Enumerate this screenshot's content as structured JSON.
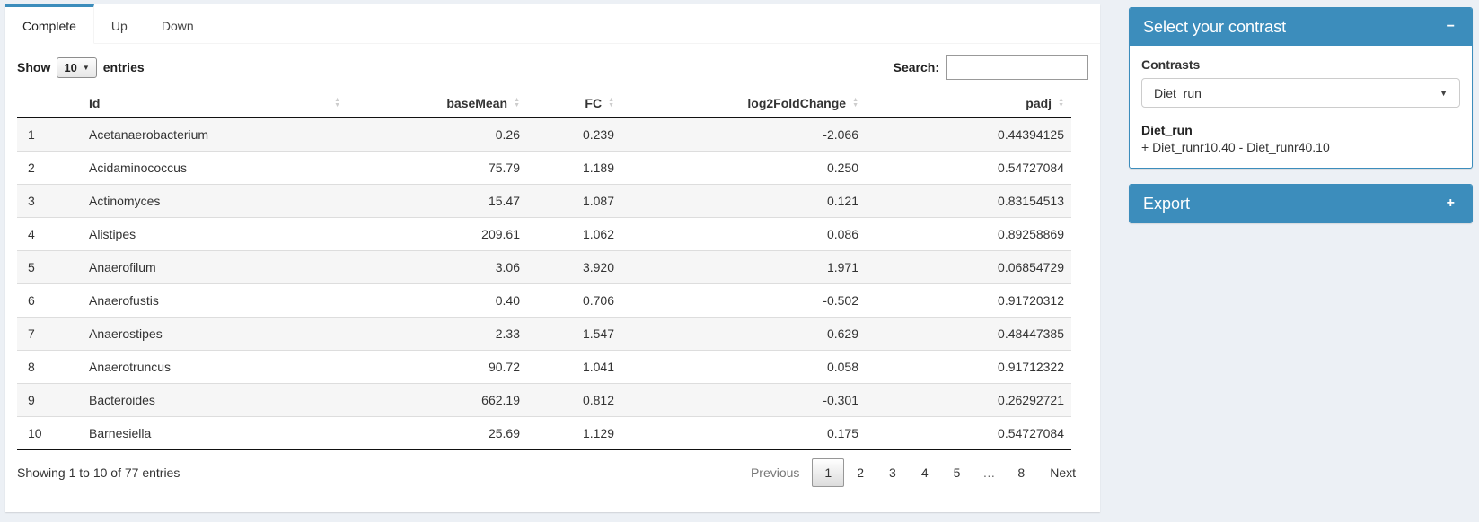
{
  "colors": {
    "accent": "#3c8dbc",
    "page_bg": "#ecf0f5",
    "stripe": "#f6f6f6"
  },
  "tabs": [
    {
      "label": "Complete",
      "active": true
    },
    {
      "label": "Up",
      "active": false
    },
    {
      "label": "Down",
      "active": false
    }
  ],
  "length_control": {
    "label_before": "Show",
    "selected": "10",
    "label_after": "entries"
  },
  "search": {
    "label": "Search:",
    "value": "",
    "placeholder": ""
  },
  "table": {
    "columns": [
      {
        "key": "index",
        "label": "",
        "sortable": false
      },
      {
        "key": "id",
        "label": "Id",
        "sortable": true
      },
      {
        "key": "baseMean",
        "label": "baseMean",
        "sortable": true
      },
      {
        "key": "fc",
        "label": "FC",
        "sortable": true
      },
      {
        "key": "log2fc",
        "label": "log2FoldChange",
        "sortable": true
      },
      {
        "key": "padj",
        "label": "padj",
        "sortable": true
      }
    ],
    "rows": [
      {
        "index": "1",
        "id": "Acetanaerobacterium",
        "baseMean": "0.26",
        "fc": "0.239",
        "log2fc": "-2.066",
        "padj": "0.44394125"
      },
      {
        "index": "2",
        "id": "Acidaminococcus",
        "baseMean": "75.79",
        "fc": "1.189",
        "log2fc": "0.250",
        "padj": "0.54727084"
      },
      {
        "index": "3",
        "id": "Actinomyces",
        "baseMean": "15.47",
        "fc": "1.087",
        "log2fc": "0.121",
        "padj": "0.83154513"
      },
      {
        "index": "4",
        "id": "Alistipes",
        "baseMean": "209.61",
        "fc": "1.062",
        "log2fc": "0.086",
        "padj": "0.89258869"
      },
      {
        "index": "5",
        "id": "Anaerofilum",
        "baseMean": "3.06",
        "fc": "3.920",
        "log2fc": "1.971",
        "padj": "0.06854729"
      },
      {
        "index": "6",
        "id": "Anaerofustis",
        "baseMean": "0.40",
        "fc": "0.706",
        "log2fc": "-0.502",
        "padj": "0.91720312"
      },
      {
        "index": "7",
        "id": "Anaerostipes",
        "baseMean": "2.33",
        "fc": "1.547",
        "log2fc": "0.629",
        "padj": "0.48447385"
      },
      {
        "index": "8",
        "id": "Anaerotruncus",
        "baseMean": "90.72",
        "fc": "1.041",
        "log2fc": "0.058",
        "padj": "0.91712322"
      },
      {
        "index": "9",
        "id": "Bacteroides",
        "baseMean": "662.19",
        "fc": "0.812",
        "log2fc": "-0.301",
        "padj": "0.26292721"
      },
      {
        "index": "10",
        "id": "Barnesiella",
        "baseMean": "25.69",
        "fc": "1.129",
        "log2fc": "0.175",
        "padj": "0.54727084"
      }
    ]
  },
  "footer": {
    "info": "Showing 1 to 10 of 77 entries",
    "pagination": {
      "previous_label": "Previous",
      "pages": [
        "1",
        "2",
        "3",
        "4",
        "5",
        "…",
        "8"
      ],
      "current_page": "1",
      "next_label": "Next"
    }
  },
  "contrast_panel": {
    "title": "Select your contrast",
    "collapse_icon": "−",
    "contrasts_label": "Contrasts",
    "selected_contrast": "Diet_run",
    "contrast_name": "Diet_run",
    "contrast_formula": "+ Diet_runr10.40 - Diet_runr40.10"
  },
  "export_panel": {
    "title": "Export",
    "expand_icon": "+"
  }
}
